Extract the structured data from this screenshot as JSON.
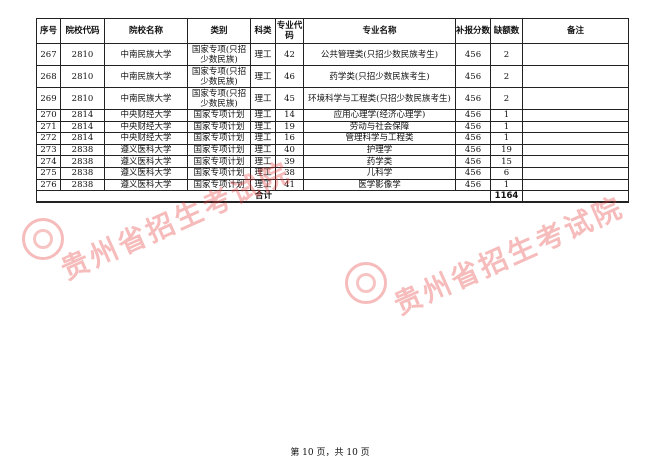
{
  "table": {
    "headers": [
      "序号",
      "院校代码",
      "院校名称",
      "类别",
      "科类",
      "专业代码",
      "专业名称",
      "补报分数线",
      "缺额数",
      "备注"
    ],
    "rows": [
      [
        "267",
        "2810",
        "中南民族大学",
        "国家专项(只招少数民族)",
        "理工",
        "42",
        "公共管理类(只招少数民族考生)",
        "456",
        "2",
        ""
      ],
      [
        "268",
        "2810",
        "中南民族大学",
        "国家专项(只招少数民族)",
        "理工",
        "46",
        "药学类(只招少数民族考生)",
        "456",
        "2",
        ""
      ],
      [
        "269",
        "2810",
        "中南民族大学",
        "国家专项(只招少数民族)",
        "理工",
        "45",
        "环境科学与工程类(只招少数民族考生)",
        "456",
        "2",
        ""
      ],
      [
        "270",
        "2814",
        "中央财经大学",
        "国家专项计划",
        "理工",
        "14",
        "应用心理学(经济心理学)",
        "456",
        "1",
        ""
      ],
      [
        "271",
        "2814",
        "中央财经大学",
        "国家专项计划",
        "理工",
        "19",
        "劳动与社会保障",
        "456",
        "1",
        ""
      ],
      [
        "272",
        "2814",
        "中央财经大学",
        "国家专项计划",
        "理工",
        "16",
        "管理科学与工程类",
        "456",
        "1",
        ""
      ],
      [
        "273",
        "2838",
        "遵义医科大学",
        "国家专项计划",
        "理工",
        "40",
        "护理学",
        "456",
        "19",
        ""
      ],
      [
        "274",
        "2838",
        "遵义医科大学",
        "国家专项计划",
        "理工",
        "39",
        "药学类",
        "456",
        "15",
        ""
      ],
      [
        "275",
        "2838",
        "遵义医科大学",
        "国家专项计划",
        "理工",
        "38",
        "儿科学",
        "456",
        "6",
        ""
      ],
      [
        "276",
        "2838",
        "遵义医科大学",
        "国家专项计划",
        "理工",
        "41",
        "医学影像学",
        "456",
        "1",
        ""
      ]
    ],
    "total_label": "合计",
    "total_value": "1164"
  },
  "watermark": {
    "text": "贵州省招生考试院",
    "color": "#e63c3c",
    "icon": "seal-logo-icon"
  },
  "footer": {
    "page_text": "第 10 页，共 10 页"
  }
}
